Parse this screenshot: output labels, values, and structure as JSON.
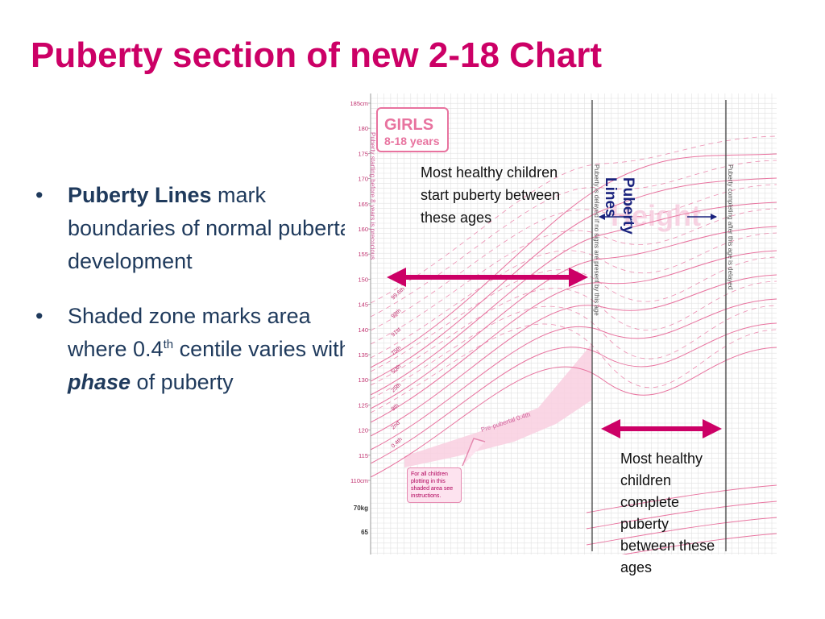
{
  "slide": {
    "title": "Puberty section of new 2-18 Chart",
    "bullets": [
      {
        "strong": "Puberty Lines",
        "text_after_strong": " mark boundaries of normal pubertal development"
      },
      {
        "text_before": "Shaded zone marks area where 0.4",
        "sup": "th",
        "text_mid": " centile varies with ",
        "em": "phase",
        "text_after": " of puberty"
      }
    ],
    "bullet_symbol": "•"
  },
  "chart": {
    "badge": {
      "title": "GIRLS",
      "subtitle": "8-18 years"
    },
    "height_ticks": [
      "185cm",
      "180",
      "175",
      "170",
      "165",
      "160",
      "155",
      "150",
      "145",
      "140",
      "135",
      "130",
      "125",
      "120",
      "115",
      "110cm"
    ],
    "weight_ticks": [
      "70kg",
      "65"
    ],
    "centile_labels": [
      "99.6th",
      "98th",
      "91st",
      "75th",
      "50th",
      "25th",
      "9th",
      "2nd",
      "0.4th"
    ],
    "pre_pubertal_label": "Pre-pubertal 0.4th",
    "vertical_texts": {
      "precocious": "Puberty starting before 8 years is precocious",
      "delayed_signs": "Puberty is delayed if no signs are present by this age",
      "delayed_completion": "Puberty completing after this age is delayed"
    },
    "watermark": "Height",
    "shaded_zone_note": "For all children plotting in this shaded area see instructions.",
    "colors": {
      "accent": "#cc0066",
      "curve": "#e8739f",
      "grid": "#e2e2e2",
      "shade": "#f9cfe0",
      "navy": "#1a237e"
    }
  },
  "annotations": {
    "start_note": "Most healthy children start puberty between these ages",
    "complete_note": "Most healthy children complete puberty between these ages",
    "puberty_lines_label": "Puberty Lines"
  }
}
